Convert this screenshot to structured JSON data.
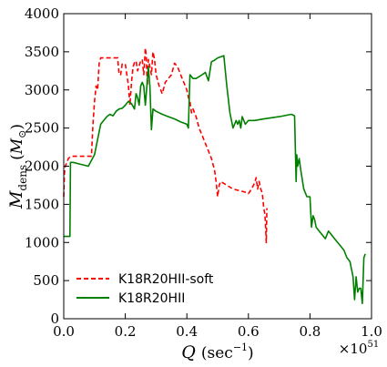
{
  "chart_data": {
    "type": "line",
    "xlabel": "Q (sec⁻¹)",
    "xlabel_parts": {
      "symbol": "Q",
      "open": "(sec",
      "sup": "−1",
      "close": ")"
    },
    "ylabel": "M_dens (M⊙)",
    "ylabel_parts": {
      "symbol": "M",
      "sub": "dens",
      "open": "(",
      "unit": "M",
      "unit_sub": "⊙",
      "close": ")"
    },
    "x_multiplier": "×10⁵¹",
    "x_multiplier_parts": {
      "base": "×10",
      "exp": "51"
    },
    "xlim": [
      0.0,
      1.0
    ],
    "ylim": [
      0,
      4000
    ],
    "xticks": [
      0.0,
      0.2,
      0.4,
      0.6,
      0.8,
      1.0
    ],
    "xtick_labels": [
      "0.0",
      "0.2",
      "0.4",
      "0.6",
      "0.8",
      "1.0"
    ],
    "yticks": [
      0,
      500,
      1000,
      1500,
      2000,
      2500,
      3000,
      3500,
      4000
    ],
    "ytick_labels": [
      "0",
      "500",
      "1000",
      "1500",
      "2000",
      "2500",
      "3000",
      "3500",
      "4000"
    ],
    "grid": false,
    "legend_position": "lower-left",
    "series": [
      {
        "name": "K18R20HII-soft",
        "color": "#ff0000",
        "style": "dashed",
        "x": [
          0.0,
          0.002,
          0.005,
          0.01,
          0.015,
          0.02,
          0.03,
          0.05,
          0.07,
          0.09,
          0.095,
          0.1,
          0.105,
          0.11,
          0.115,
          0.12,
          0.14,
          0.16,
          0.175,
          0.18,
          0.185,
          0.19,
          0.2,
          0.205,
          0.21,
          0.215,
          0.22,
          0.225,
          0.23,
          0.235,
          0.24,
          0.25,
          0.255,
          0.26,
          0.265,
          0.268,
          0.27,
          0.272,
          0.275,
          0.28,
          0.285,
          0.29,
          0.295,
          0.3,
          0.31,
          0.32,
          0.33,
          0.35,
          0.36,
          0.37,
          0.38,
          0.39,
          0.4,
          0.405,
          0.41,
          0.415,
          0.42,
          0.43,
          0.44,
          0.45,
          0.46,
          0.47,
          0.48,
          0.49,
          0.495,
          0.5,
          0.505,
          0.51,
          0.53,
          0.55,
          0.57,
          0.59,
          0.6,
          0.61,
          0.62,
          0.625,
          0.63,
          0.635,
          0.64,
          0.645,
          0.65,
          0.653,
          0.655,
          0.658,
          0.66
        ],
        "y": [
          1600,
          1900,
          2000,
          2050,
          2100,
          2120,
          2130,
          2130,
          2130,
          2130,
          2550,
          2850,
          3050,
          3000,
          3350,
          3420,
          3420,
          3420,
          3420,
          3200,
          3200,
          3340,
          3340,
          3200,
          3060,
          2800,
          3100,
          3300,
          3360,
          3380,
          3250,
          3380,
          3400,
          3200,
          3550,
          3450,
          3200,
          3060,
          3400,
          3300,
          3200,
          3500,
          3400,
          3200,
          3050,
          2950,
          3100,
          3200,
          3350,
          3300,
          3200,
          3100,
          3000,
          2900,
          2850,
          2700,
          2750,
          2650,
          2500,
          2400,
          2300,
          2200,
          2100,
          1950,
          1800,
          1600,
          1750,
          1800,
          1750,
          1700,
          1680,
          1660,
          1640,
          1700,
          1780,
          1850,
          1700,
          1800,
          1700,
          1650,
          1450,
          1380,
          1280,
          1000,
          1450
        ]
      },
      {
        "name": "K18R20HII",
        "color": "#008000",
        "style": "solid",
        "x": [
          0.0,
          0.01,
          0.02,
          0.022,
          0.03,
          0.05,
          0.08,
          0.1,
          0.12,
          0.13,
          0.14,
          0.15,
          0.16,
          0.17,
          0.18,
          0.19,
          0.2,
          0.21,
          0.22,
          0.23,
          0.235,
          0.24,
          0.245,
          0.25,
          0.255,
          0.26,
          0.265,
          0.27,
          0.275,
          0.28,
          0.285,
          0.29,
          0.3,
          0.32,
          0.34,
          0.36,
          0.38,
          0.4,
          0.405,
          0.41,
          0.42,
          0.43,
          0.45,
          0.46,
          0.47,
          0.48,
          0.49,
          0.5,
          0.52,
          0.53,
          0.54,
          0.55,
          0.56,
          0.565,
          0.57,
          0.575,
          0.58,
          0.59,
          0.6,
          0.62,
          0.65,
          0.7,
          0.74,
          0.75,
          0.755,
          0.757,
          0.76,
          0.765,
          0.77,
          0.78,
          0.79,
          0.8,
          0.805,
          0.81,
          0.815,
          0.82,
          0.83,
          0.84,
          0.85,
          0.86,
          0.87,
          0.88,
          0.89,
          0.9,
          0.91,
          0.92,
          0.93,
          0.94,
          0.945,
          0.95,
          0.955,
          0.96,
          0.965,
          0.97,
          0.975,
          0.98
        ],
        "y": [
          1080,
          1080,
          1080,
          2050,
          2050,
          2030,
          2000,
          2150,
          2550,
          2600,
          2650,
          2680,
          2660,
          2720,
          2750,
          2760,
          2800,
          2850,
          2820,
          2750,
          2950,
          2900,
          2800,
          3050,
          3100,
          3050,
          2800,
          3050,
          3300,
          3050,
          2480,
          2750,
          2720,
          2680,
          2650,
          2620,
          2580,
          2550,
          2500,
          3200,
          3150,
          3150,
          3200,
          3230,
          3120,
          3370,
          3390,
          3420,
          3450,
          3050,
          2700,
          2500,
          2600,
          2550,
          2600,
          2500,
          2650,
          2550,
          2600,
          2600,
          2620,
          2650,
          2680,
          2660,
          1800,
          2150,
          2000,
          2100,
          1950,
          1700,
          1600,
          1600,
          1200,
          1350,
          1300,
          1200,
          1150,
          1100,
          1050,
          1150,
          1100,
          1050,
          1000,
          950,
          900,
          800,
          750,
          550,
          250,
          550,
          350,
          400,
          400,
          200,
          800,
          850
        ]
      }
    ]
  }
}
